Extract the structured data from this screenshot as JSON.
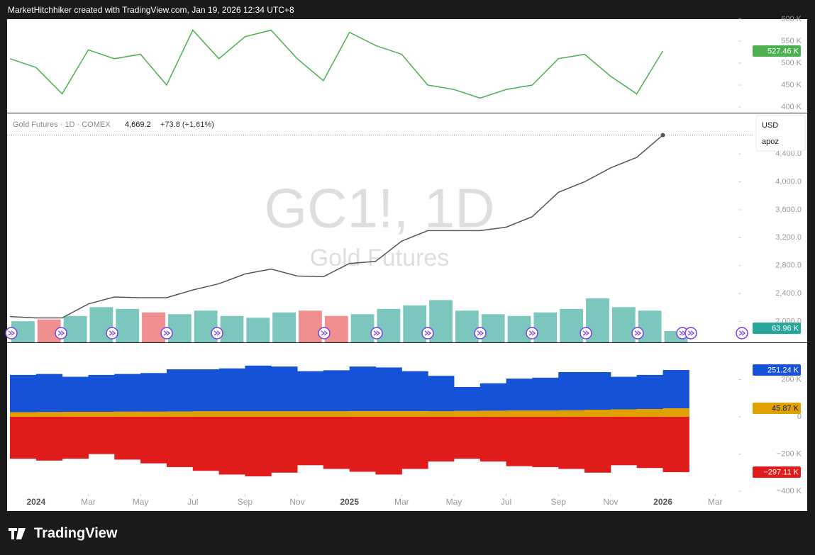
{
  "header": {
    "title": "MarketHitchhiker created with TradingView.com, Jan 19, 2026 12:34 UTC+8"
  },
  "footer": {
    "brand": "TradingView"
  },
  "chart_data": [
    {
      "type": "line",
      "x": [
        "2023-12",
        "2024-01",
        "2024-02",
        "2024-03",
        "2024-04",
        "2024-05",
        "2024-06",
        "2024-07",
        "2024-08",
        "2024-09",
        "2024-10",
        "2024-11",
        "2024-12",
        "2025-01",
        "2025-02",
        "2025-03",
        "2025-04",
        "2025-05",
        "2025-06",
        "2025-07",
        "2025-08",
        "2025-09",
        "2025-10",
        "2025-11",
        "2025-12",
        "2026-01"
      ],
      "xlim": [
        "2023-12",
        "2026-04"
      ],
      "series": [
        {
          "color": "#4caf50",
          "last_label": "527.46 K",
          "values": [
            510000,
            490000,
            430000,
            530000,
            510000,
            520000,
            450000,
            575000,
            510000,
            560000,
            575000,
            510000,
            460000,
            570000,
            540000,
            520000,
            450000,
            440000,
            420000,
            440000,
            450000,
            510000,
            520000,
            470000,
            430000,
            527460
          ]
        }
      ],
      "ylim": [
        387000,
        600000
      ],
      "yticks": [
        {
          "value": 400000,
          "label": "400 K"
        },
        {
          "value": 450000,
          "label": "450 K"
        },
        {
          "value": 500000,
          "label": "500 K"
        },
        {
          "value": 550000,
          "label": "550 K"
        },
        {
          "value": 600000,
          "label": "600 K"
        }
      ]
    },
    {
      "type": "line",
      "title": "Gold Futures · 1D · COMEX",
      "last": "4,669.2",
      "change": "+73.8 (+1.61%)",
      "watermark": "GC1!, 1D",
      "subtitle": "Gold Futures",
      "currency": "USD",
      "scale_label": "apoz",
      "x": [
        "2023-12",
        "2024-01",
        "2024-02",
        "2024-03",
        "2024-04",
        "2024-05",
        "2024-06",
        "2024-07",
        "2024-08",
        "2024-09",
        "2024-10",
        "2024-11",
        "2024-12",
        "2025-01",
        "2025-02",
        "2025-03",
        "2025-04",
        "2025-05",
        "2025-06",
        "2025-07",
        "2025-08",
        "2025-09",
        "2025-10",
        "2025-11",
        "2025-12",
        "2026-01"
      ],
      "xlim": [
        "2023-12",
        "2026-04"
      ],
      "series": [
        {
          "color": "#555555",
          "values": [
            2070,
            2050,
            2050,
            2250,
            2350,
            2340,
            2340,
            2450,
            2540,
            2680,
            2750,
            2650,
            2640,
            2830,
            2860,
            3150,
            3300,
            3300,
            3300,
            3350,
            3500,
            3850,
            4000,
            4200,
            4350,
            4669.2
          ]
        },
        {
          "axis": "y3",
          "up_color": "#7cc7bd",
          "down_color": "#ef8f8f",
          "last_label": "63.96 K",
          "values": [
            120000,
            130000,
            150000,
            200000,
            190000,
            170000,
            160000,
            180000,
            150000,
            140000,
            170000,
            180000,
            150000,
            160000,
            190000,
            210000,
            240000,
            180000,
            160000,
            150000,
            170000,
            190000,
            250000,
            200000,
            180000,
            63960
          ]
        }
      ],
      "ylim": [
        1700,
        4980
      ],
      "y3lim": [
        0,
        1300000
      ],
      "yticks": [
        {
          "value": 2000,
          "label": "2,000.0"
        },
        {
          "value": 2400,
          "label": "2,400.0"
        },
        {
          "value": 2800,
          "label": "2,800.0"
        },
        {
          "value": 3200,
          "label": "3,200.0"
        },
        {
          "value": 3600,
          "label": "3,600.0"
        },
        {
          "value": 4000,
          "label": "4,000.0"
        },
        {
          "value": 4400,
          "label": "4,400.0"
        }
      ]
    },
    {
      "type": "bar",
      "x": [
        "2023-12",
        "2024-01",
        "2024-02",
        "2024-03",
        "2024-04",
        "2024-05",
        "2024-06",
        "2024-07",
        "2024-08",
        "2024-09",
        "2024-10",
        "2024-11",
        "2024-12",
        "2025-01",
        "2025-02",
        "2025-03",
        "2025-04",
        "2025-05",
        "2025-06",
        "2025-07",
        "2025-08",
        "2025-09",
        "2025-10",
        "2025-11",
        "2025-12",
        "2026-01"
      ],
      "xlim": [
        "2023-12",
        "2026-04"
      ],
      "series": [
        {
          "color": "#1652d8",
          "last_label": "251.24 K",
          "values": [
            225000,
            230000,
            215000,
            225000,
            230000,
            235000,
            255000,
            255000,
            260000,
            275000,
            270000,
            245000,
            250000,
            270000,
            265000,
            245000,
            220000,
            160000,
            180000,
            205000,
            210000,
            240000,
            240000,
            215000,
            225000,
            251240
          ]
        },
        {
          "color": "#e0a100",
          "last_label": "45.87 K",
          "values": [
            25000,
            26000,
            27000,
            27000,
            28000,
            28000,
            29000,
            30000,
            30000,
            30000,
            30000,
            30000,
            30000,
            31000,
            31000,
            31000,
            30000,
            32000,
            33000,
            34000,
            34000,
            35000,
            38000,
            40000,
            42000,
            45870
          ]
        },
        {
          "color": "#e01b1b",
          "last_label": "−297.11 K",
          "values": [
            -225000,
            -235000,
            -225000,
            -200000,
            -230000,
            -250000,
            -270000,
            -290000,
            -310000,
            -320000,
            -300000,
            -260000,
            -280000,
            -295000,
            -310000,
            -280000,
            -240000,
            -225000,
            -240000,
            -265000,
            -270000,
            -280000,
            -300000,
            -260000,
            -275000,
            -297110
          ]
        }
      ],
      "ylim": [
        -411000,
        396000
      ],
      "yticks": [
        {
          "value": 200000,
          "label": "200 K"
        },
        0,
        {
          "value": -200000,
          "label": "−200 K"
        },
        {
          "value": -400000,
          "label": "−400 K"
        }
      ],
      "xticks": [
        {
          "value": "2024-01",
          "label": "2024"
        },
        {
          "value": "2024-03",
          "label": "Mar"
        },
        {
          "value": "2024-05",
          "label": "May"
        },
        {
          "value": "2024-07",
          "label": "Jul"
        },
        {
          "value": "2024-09",
          "label": "Sep"
        },
        {
          "value": "2024-11",
          "label": "Nov"
        },
        {
          "value": "2025-01",
          "label": "2025"
        },
        {
          "value": "2025-03",
          "label": "Mar"
        },
        {
          "value": "2025-05",
          "label": "May"
        },
        {
          "value": "2025-07",
          "label": "Jul"
        },
        {
          "value": "2025-09",
          "label": "Sep"
        },
        {
          "value": "2025-11",
          "label": "Nov"
        },
        {
          "value": "2026-01",
          "label": "2026"
        },
        {
          "value": "2026-03",
          "label": "Mar"
        }
      ]
    }
  ]
}
